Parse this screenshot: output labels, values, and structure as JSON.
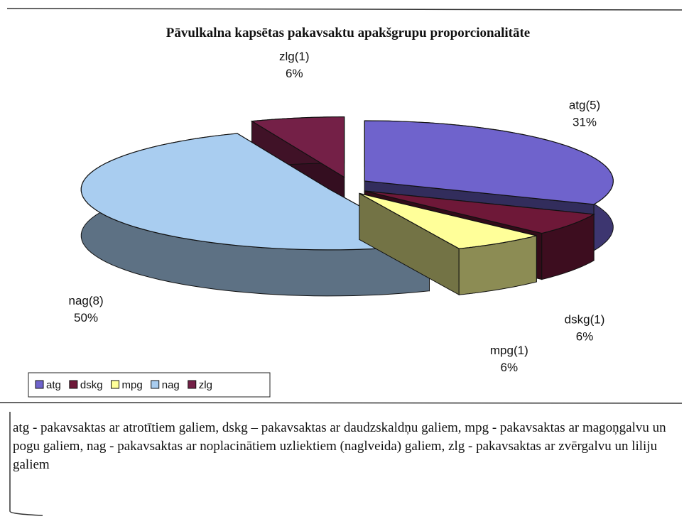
{
  "chart_data": {
    "type": "pie3d",
    "title": "Pāvulkalna kapsētas pakavsaktu apakšgrupu proporcionalitāte",
    "categories": [
      "atg",
      "dskg",
      "mpg",
      "nag",
      "zlg"
    ],
    "data_labels": [
      "atg(5)",
      "dskg(1)",
      "mpg(1)",
      "nag(8)",
      "zlg(1)"
    ],
    "values": [
      31,
      6,
      6,
      50,
      6
    ],
    "value_labels": [
      "31%",
      "6%",
      "6%",
      "50%",
      "6%"
    ],
    "colors": [
      "#6f63cc",
      "#6e1838",
      "#ffff99",
      "#a9cdf0",
      "#742047"
    ],
    "legend": "bottom-left"
  },
  "footnote": "atg - pakavsaktas ar atrotītiem galiem, dskg – pakavsaktas ar daudzskaldņu galiem, mpg - pakavsaktas ar magoņgalvu un pogu galiem, nag - pakavsaktas ar noplacinātiem uzliektiem (naglveida) galiem, zlg - pakavsaktas ar zvērgalvu un liliju galiem"
}
